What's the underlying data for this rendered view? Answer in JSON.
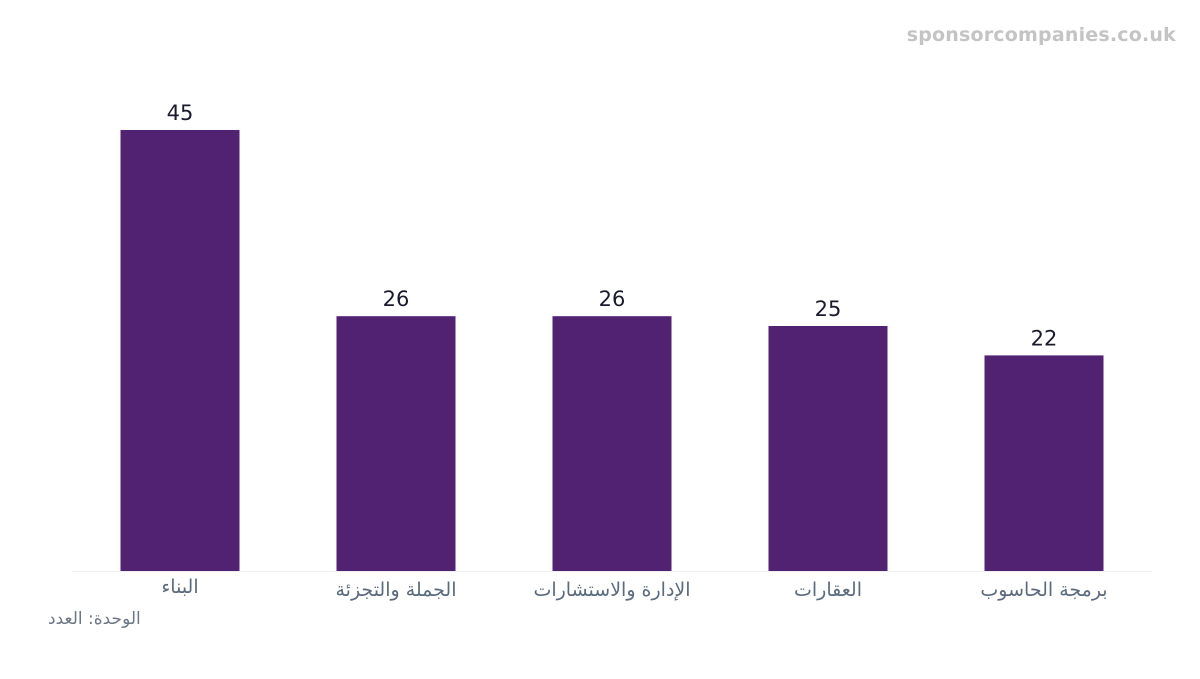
{
  "watermark": "sponsorcompanies.co.uk",
  "unit_label": "الوحدة: العدد",
  "colors": {
    "bar": "#512172",
    "value_label": "#1a1a2e",
    "category_label": "#5b6b7d",
    "baseline": "#eeeeee"
  },
  "chart_data": {
    "type": "bar",
    "categories": [
      "البناء",
      "الجملة والتجزئة",
      "الإدارة والاستشارات",
      "العقارات",
      "برمجة الحاسوب"
    ],
    "values": [
      45,
      26,
      26,
      25,
      22
    ],
    "ylim": [
      0,
      45
    ],
    "grid": false,
    "data_labels": true
  }
}
